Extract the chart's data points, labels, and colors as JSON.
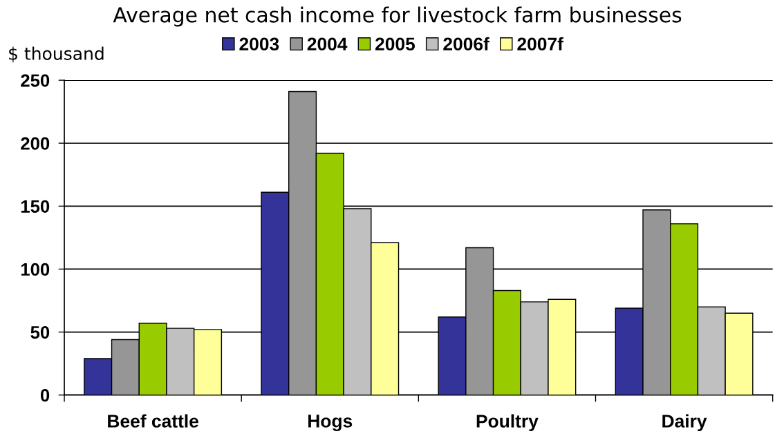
{
  "chart_data": {
    "type": "bar",
    "title": "Average net cash income for livestock farm businesses",
    "ylabel": "$ thousand",
    "categories": [
      "Beef cattle",
      "Hogs",
      "Poultry",
      "Dairy"
    ],
    "series": [
      {
        "name": "2003",
        "color": "#333399",
        "values": [
          29,
          161,
          62,
          69
        ]
      },
      {
        "name": "2004",
        "color": "#969696",
        "values": [
          44,
          241,
          117,
          147
        ]
      },
      {
        "name": "2005",
        "color": "#99cc00",
        "values": [
          57,
          192,
          83,
          136
        ]
      },
      {
        "name": "2006f",
        "color": "#c0c0c0",
        "values": [
          53,
          148,
          74,
          70
        ]
      },
      {
        "name": "2007f",
        "color": "#ffff99",
        "values": [
          52,
          121,
          76,
          65
        ]
      }
    ],
    "ylim": [
      0,
      250
    ],
    "yticks": [
      0,
      50,
      100,
      150,
      200,
      250
    ],
    "grid": "y",
    "legend": "top"
  }
}
